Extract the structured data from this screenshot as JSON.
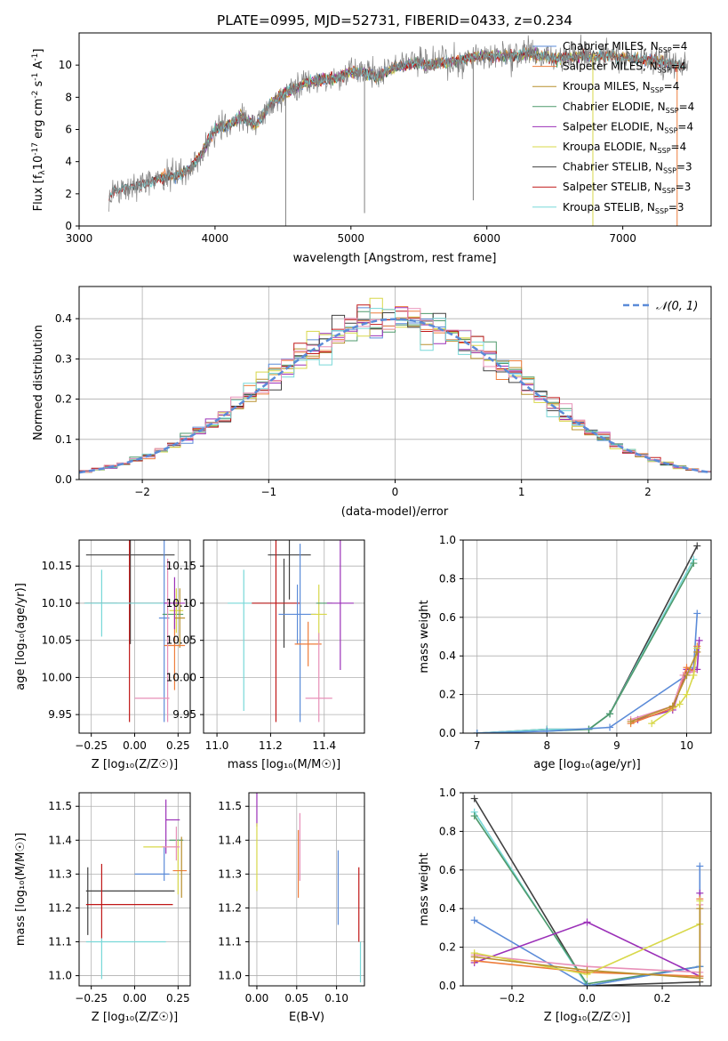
{
  "figure_title": "PLATE=0995, MJD=52731, FIBERID=0433, z=0.234",
  "colors": {
    "chabrier_miles": "#5b8bd8",
    "salpeter_miles": "#ee7d3c",
    "kroupa_miles": "#b8902e",
    "chabrier_elodie": "#4f9a6c",
    "salpeter_elodie": "#9b30b8",
    "kroupa_elodie": "#d8d84a",
    "chabrier_stelib": "#404040",
    "salpeter_stelib": "#c01818",
    "kroupa_stelib": "#78d8d8",
    "data": "#808080",
    "extra_pink": "#e890b8",
    "gaussian": "#5b8bd8"
  },
  "chart_data": [
    {
      "id": "spectrum",
      "type": "line",
      "xlabel": "wavelength [Angstrom, rest frame]",
      "ylabel_main": "Flux [f",
      "ylabel_sub1": "λ",
      "ylabel_mid": "10",
      "ylabel_sup1": "-17",
      "ylabel_rest": " erg cm",
      "ylabel_sup2": "-2",
      "ylabel_rest2": " s",
      "ylabel_sup3": "-1",
      "ylabel_rest3": " A",
      "ylabel_sup4": "-1",
      "ylabel_end": "]",
      "xlim": [
        3000,
        7650
      ],
      "ylim": [
        0,
        12
      ],
      "xticks": [
        3000,
        4000,
        5000,
        6000,
        7000
      ],
      "yticks": [
        0,
        2,
        4,
        6,
        8,
        10
      ],
      "legend_position": "upper-right",
      "legend": [
        {
          "name": "Chabrier MILES, N",
          "sub": "SSP",
          "tail": "=4",
          "color": "#5b8bd8"
        },
        {
          "name": "Salpeter MILES, N",
          "sub": "SSP",
          "tail": "=4",
          "color": "#ee7d3c"
        },
        {
          "name": "Kroupa MILES, N",
          "sub": "SSP",
          "tail": "=4",
          "color": "#b8902e"
        },
        {
          "name": "Chabrier ELODIE, N",
          "sub": "SSP",
          "tail": "=4",
          "color": "#4f9a6c"
        },
        {
          "name": "Salpeter ELODIE, N",
          "sub": "SSP",
          "tail": "=4",
          "color": "#9b30b8"
        },
        {
          "name": "Kroupa ELODIE, N",
          "sub": "SSP",
          "tail": "=4",
          "color": "#d8d84a"
        },
        {
          "name": "Chabrier STELIB, N",
          "sub": "SSP",
          "tail": "=3",
          "color": "#404040"
        },
        {
          "name": "Salpeter STELIB, N",
          "sub": "SSP",
          "tail": "=3",
          "color": "#c01818"
        },
        {
          "name": "Kroupa STELIB, N",
          "sub": "SSP",
          "tail": "=3",
          "color": "#78d8d8"
        }
      ],
      "envelope": [
        [
          3200,
          0.0
        ],
        [
          3220,
          1.8
        ],
        [
          3250,
          2.2
        ],
        [
          3300,
          2.3
        ],
        [
          3400,
          2.5
        ],
        [
          3500,
          2.6
        ],
        [
          3600,
          3.0
        ],
        [
          3700,
          3.1
        ],
        [
          3800,
          3.4
        ],
        [
          3900,
          4.5
        ],
        [
          4000,
          6.0
        ],
        [
          4100,
          6.3
        ],
        [
          4200,
          6.8
        ],
        [
          4300,
          6.2
        ],
        [
          4400,
          7.5
        ],
        [
          4500,
          8.2
        ],
        [
          4600,
          8.6
        ],
        [
          4700,
          9.0
        ],
        [
          4800,
          9.1
        ],
        [
          4900,
          9.2
        ],
        [
          5000,
          9.6
        ],
        [
          5100,
          9.5
        ],
        [
          5200,
          9.3
        ],
        [
          5300,
          9.8
        ],
        [
          5400,
          10.0
        ],
        [
          5500,
          10.1
        ],
        [
          5600,
          10.0
        ],
        [
          5700,
          10.2
        ],
        [
          5800,
          10.3
        ],
        [
          5900,
          10.5
        ],
        [
          6000,
          10.6
        ],
        [
          6100,
          10.5
        ],
        [
          6200,
          10.6
        ],
        [
          6300,
          10.7
        ],
        [
          6400,
          10.6
        ],
        [
          6500,
          10.4
        ],
        [
          6600,
          10.5
        ],
        [
          6700,
          10.6
        ],
        [
          6800,
          10.5
        ],
        [
          6900,
          10.6
        ],
        [
          7000,
          10.5
        ],
        [
          7100,
          10.4
        ],
        [
          7200,
          10.3
        ],
        [
          7300,
          10.2
        ],
        [
          7400,
          10.0
        ]
      ]
    },
    {
      "id": "residuals",
      "type": "histogram",
      "xlabel": "(data-model)/error",
      "ylabel": "Normed distribution",
      "xlim": [
        -2.5,
        2.5
      ],
      "ylim": [
        0,
        0.48
      ],
      "xticks": [
        -2,
        -1,
        0,
        1,
        2
      ],
      "yticks": [
        0.0,
        0.1,
        0.2,
        0.3,
        0.4
      ],
      "grid": true,
      "legend_position": "upper-right",
      "gaussian_legend": "𝒩(0, 1)",
      "bin_width": 0.1
    },
    {
      "id": "age-vs-Z",
      "type": "errorbar",
      "xlabel": "Z [log₁₀(Z/Z☉)]",
      "ylabel": "age  [log₁₀(age/yr)]",
      "xlim": [
        -0.32,
        0.32
      ],
      "ylim": [
        9.925,
        10.185
      ],
      "xticks": [
        -0.25,
        0.0,
        0.25
      ],
      "yticks": [
        9.95,
        10.0,
        10.05,
        10.1,
        10.15
      ],
      "grid": true,
      "points": [
        {
          "x": -0.025,
          "xerr": 0.255,
          "y": 10.165,
          "yerr": 0.12,
          "color": "#404040"
        },
        {
          "x": -0.19,
          "xerr": 0.09,
          "y": 10.1,
          "yerr": 0.045,
          "color": "#78d8d8"
        },
        {
          "x": -0.03,
          "xerr": 0.26,
          "y": 10.1,
          "yerr": 0.16,
          "color": "#c01818"
        },
        {
          "x": -0.03,
          "xerr": 0.26,
          "y": 10.1,
          "yerr": 0.0,
          "color": "#78d8d8"
        },
        {
          "x": 0.17,
          "xerr": 0.03,
          "y": 10.08,
          "yerr": 0.14,
          "color": "#5b8bd8"
        },
        {
          "x": 0.22,
          "xerr": 0.06,
          "y": 10.085,
          "yerr": 0.0,
          "color": "#4f9a6c"
        },
        {
          "x": 0.24,
          "xerr": 0.04,
          "y": 10.09,
          "yerr": 0.03,
          "color": "#d8d84a"
        },
        {
          "x": 0.26,
          "xerr": 0.03,
          "y": 10.08,
          "yerr": 0.04,
          "color": "#b8902e"
        },
        {
          "x": 0.23,
          "xerr": 0.06,
          "y": 10.043,
          "yerr": 0.06,
          "color": "#ee7d3c"
        },
        {
          "x": 0.23,
          "xerr": 0.06,
          "y": 10.1,
          "yerr": 0.035,
          "color": "#9b30b8"
        },
        {
          "x": 0.1,
          "xerr": 0.1,
          "y": 9.972,
          "yerr": 0.0,
          "color": "#e890b8"
        },
        {
          "x": 0.19,
          "xerr": 0.0,
          "y": 10.05,
          "yerr": 0.11,
          "color": "#e890b8"
        }
      ]
    },
    {
      "id": "age-vs-mass",
      "type": "errorbar",
      "xlabel": "mass [log₁₀(M/M☉)]",
      "xlim": [
        10.95,
        11.55
      ],
      "ylim": [
        9.925,
        10.185
      ],
      "xticks": [
        11.0,
        11.2,
        11.4
      ],
      "yticks": [
        9.95,
        10.0,
        10.05,
        10.1,
        10.15
      ],
      "grid": true,
      "points": [
        {
          "x": 11.27,
          "xerr": 0.08,
          "y": 10.165,
          "yerr": 0.06,
          "color": "#404040"
        },
        {
          "x": 11.25,
          "xerr": 0.0,
          "y": 10.1,
          "yerr": 0.06,
          "color": "#404040"
        },
        {
          "x": 11.1,
          "xerr": 0.0,
          "y": 10.05,
          "yerr": 0.095,
          "color": "#78d8d8"
        },
        {
          "x": 11.17,
          "xerr": 0.13,
          "y": 10.1,
          "yerr": 0.0,
          "color": "#78d8d8"
        },
        {
          "x": 11.22,
          "xerr": 0.09,
          "y": 10.1,
          "yerr": 0.16,
          "color": "#c01818"
        },
        {
          "x": 11.3,
          "xerr": 0.07,
          "y": 10.085,
          "yerr": 0.04,
          "color": "#5b8bd8"
        },
        {
          "x": 11.31,
          "xerr": 0.0,
          "y": 10.06,
          "yerr": 0.12,
          "color": "#5b8bd8"
        },
        {
          "x": 11.34,
          "xerr": 0.05,
          "y": 10.045,
          "yerr": 0.03,
          "color": "#ee7d3c"
        },
        {
          "x": 11.38,
          "xerr": 0.03,
          "y": 10.085,
          "yerr": 0.04,
          "color": "#d8d84a"
        },
        {
          "x": 11.4,
          "xerr": 0.03,
          "y": 10.1,
          "yerr": 0.0,
          "color": "#4f9a6c"
        },
        {
          "x": 11.46,
          "xerr": 0.05,
          "y": 10.1,
          "yerr": 0.09,
          "color": "#9b30b8"
        },
        {
          "x": 11.38,
          "xerr": 0.05,
          "y": 9.972,
          "yerr": 0.0,
          "color": "#e890b8"
        },
        {
          "x": 11.38,
          "xerr": 0.0,
          "y": 10.0,
          "yerr": 0.06,
          "color": "#e890b8"
        }
      ]
    },
    {
      "id": "mass-weight-vs-age",
      "type": "line",
      "xlabel": "age  [log₁₀(age/yr)]",
      "ylabel": "mass weight",
      "xlim": [
        6.8,
        10.35
      ],
      "ylim": [
        0,
        1.0
      ],
      "xticks": [
        7,
        8,
        9,
        10
      ],
      "yticks": [
        0.0,
        0.2,
        0.4,
        0.6,
        0.8,
        1.0
      ],
      "grid": true,
      "series": [
        {
          "color": "#404040",
          "x": [
            7.0,
            8.0,
            8.6,
            8.9,
            10.15
          ],
          "y": [
            0.0,
            0.02,
            0.02,
            0.1,
            0.97
          ]
        },
        {
          "color": "#78d8d8",
          "x": [
            7.0,
            8.0,
            8.6,
            8.9,
            10.1
          ],
          "y": [
            0.0,
            0.02,
            0.02,
            0.1,
            0.9
          ]
        },
        {
          "color": "#4f9a6c",
          "x": [
            8.0,
            8.6,
            8.9,
            10.1
          ],
          "y": [
            0.01,
            0.02,
            0.1,
            0.88
          ]
        },
        {
          "color": "#5b8bd8",
          "x": [
            7.0,
            8.0,
            8.9,
            10.0,
            10.1,
            10.15
          ],
          "y": [
            0.0,
            0.01,
            0.03,
            0.3,
            0.34,
            0.62
          ]
        },
        {
          "color": "#9b30b8",
          "x": [
            9.3,
            9.8,
            10.0,
            10.15,
            10.18
          ],
          "y": [
            0.07,
            0.12,
            0.33,
            0.33,
            0.48
          ]
        },
        {
          "color": "#ee7d3c",
          "x": [
            9.2,
            9.8,
            10.0,
            10.1,
            10.15
          ],
          "y": [
            0.05,
            0.13,
            0.34,
            0.32,
            0.45
          ]
        },
        {
          "color": "#e890b8",
          "x": [
            9.2,
            9.8,
            9.95,
            10.1,
            10.15
          ],
          "y": [
            0.07,
            0.14,
            0.3,
            0.32,
            0.42
          ]
        },
        {
          "color": "#d8d84a",
          "x": [
            9.5,
            9.9,
            10.0,
            10.1,
            10.15
          ],
          "y": [
            0.05,
            0.15,
            0.2,
            0.3,
            0.44
          ]
        },
        {
          "color": "#b8902e",
          "x": [
            9.2,
            9.8,
            10.0,
            10.15
          ],
          "y": [
            0.06,
            0.14,
            0.3,
            0.42
          ]
        }
      ]
    },
    {
      "id": "mass-vs-Z",
      "type": "errorbar",
      "xlabel": "Z [log₁₀(Z/Z☉)]",
      "ylabel": "mass [log₁₀(M/M☉)]",
      "xlim": [
        -0.32,
        0.32
      ],
      "ylim": [
        10.97,
        11.54
      ],
      "xticks": [
        -0.25,
        0.0,
        0.25
      ],
      "yticks": [
        11.0,
        11.1,
        11.2,
        11.3,
        11.4,
        11.5
      ],
      "grid": true,
      "points": [
        {
          "x": -0.025,
          "xerr": 0.255,
          "y": 11.25,
          "yerr": 0.0,
          "color": "#404040"
        },
        {
          "x": -0.27,
          "xerr": 0.0,
          "y": 11.22,
          "yerr": 0.1,
          "color": "#404040"
        },
        {
          "x": -0.03,
          "xerr": 0.25,
          "y": 11.21,
          "yerr": 0.0,
          "color": "#c01818"
        },
        {
          "x": -0.19,
          "xerr": 0.0,
          "y": 11.22,
          "yerr": 0.11,
          "color": "#c01818"
        },
        {
          "x": -0.05,
          "xerr": 0.23,
          "y": 11.1,
          "yerr": 0.0,
          "color": "#78d8d8"
        },
        {
          "x": -0.19,
          "xerr": 0.0,
          "y": 11.05,
          "yerr": 0.06,
          "color": "#78d8d8"
        },
        {
          "x": 0.1,
          "xerr": 0.1,
          "y": 11.3,
          "yerr": 0.0,
          "color": "#5b8bd8"
        },
        {
          "x": 0.17,
          "xerr": 0.0,
          "y": 11.33,
          "yerr": 0.05,
          "color": "#5b8bd8"
        },
        {
          "x": 0.22,
          "xerr": 0.04,
          "y": 11.46,
          "yerr": 0.0,
          "color": "#9b30b8"
        },
        {
          "x": 0.18,
          "xerr": 0.0,
          "y": 11.44,
          "yerr": 0.08,
          "color": "#9b30b8"
        },
        {
          "x": 0.24,
          "xerr": 0.04,
          "y": 11.4,
          "yerr": 0.0,
          "color": "#4f9a6c"
        },
        {
          "x": 0.15,
          "xerr": 0.1,
          "y": 11.38,
          "yerr": 0.0,
          "color": "#d8d84a"
        },
        {
          "x": 0.25,
          "xerr": 0.0,
          "y": 11.32,
          "yerr": 0.08,
          "color": "#d8d84a"
        },
        {
          "x": 0.26,
          "xerr": 0.04,
          "y": 11.31,
          "yerr": 0.0,
          "color": "#ee7d3c"
        },
        {
          "x": 0.27,
          "xerr": 0.0,
          "y": 11.32,
          "yerr": 0.09,
          "color": "#b8902e"
        },
        {
          "x": 0.21,
          "xerr": 0.05,
          "y": 11.38,
          "yerr": 0.0,
          "color": "#e890b8"
        },
        {
          "x": 0.24,
          "xerr": 0.0,
          "y": 11.39,
          "yerr": 0.05,
          "color": "#e890b8"
        }
      ]
    },
    {
      "id": "mass-vs-EBV",
      "type": "errorbar",
      "xlabel": "E(B-V)",
      "xlim": [
        -0.01,
        0.135
      ],
      "ylim": [
        10.97,
        11.54
      ],
      "xticks": [
        0.0,
        0.05,
        0.1
      ],
      "yticks": [
        11.0,
        11.1,
        11.2,
        11.3,
        11.4,
        11.5
      ],
      "grid": true,
      "points": [
        {
          "x": 0.0,
          "xerr": 0.0,
          "y": 11.49,
          "yerr": 0.05,
          "color": "#9b30b8"
        },
        {
          "x": 0.0,
          "xerr": 0.0,
          "y": 11.35,
          "yerr": 0.1,
          "color": "#d8d84a"
        },
        {
          "x": 0.052,
          "xerr": 0.0,
          "y": 11.33,
          "yerr": 0.1,
          "color": "#ee7d3c"
        },
        {
          "x": 0.054,
          "xerr": 0.0,
          "y": 11.38,
          "yerr": 0.1,
          "color": "#e890b8"
        },
        {
          "x": 0.102,
          "xerr": 0.0,
          "y": 11.26,
          "yerr": 0.11,
          "color": "#5b8bd8"
        },
        {
          "x": 0.128,
          "xerr": 0.0,
          "y": 11.21,
          "yerr": 0.11,
          "color": "#c01818"
        },
        {
          "x": 0.13,
          "xerr": 0.0,
          "y": 11.04,
          "yerr": 0.06,
          "color": "#78d8d8"
        }
      ]
    },
    {
      "id": "mass-weight-vs-Z",
      "type": "line",
      "xlabel": "Z [log₁₀(Z/Z☉)]",
      "ylabel": "mass weight",
      "xlim": [
        -0.33,
        0.33
      ],
      "ylim": [
        0,
        1.0
      ],
      "xticks": [
        -0.2,
        0.0,
        0.2
      ],
      "yticks": [
        0.0,
        0.2,
        0.4,
        0.6,
        0.8,
        1.0
      ],
      "grid": true,
      "series": [
        {
          "color": "#404040",
          "x": [
            -0.3,
            0.0,
            0.3
          ],
          "y": [
            0.97,
            0.0,
            0.02
          ]
        },
        {
          "color": "#78d8d8",
          "x": [
            -0.3,
            0.0,
            0.3
          ],
          "y": [
            0.9,
            0.0,
            0.1
          ]
        },
        {
          "color": "#4f9a6c",
          "x": [
            -0.3,
            0.0,
            0.3
          ],
          "y": [
            0.88,
            0.01,
            0.1
          ]
        },
        {
          "color": "#5b8bd8",
          "x": [
            -0.3,
            0.0,
            0.3,
            0.3
          ],
          "y": [
            0.34,
            0.0,
            0.1,
            0.62
          ]
        },
        {
          "color": "#9b30b8",
          "x": [
            -0.3,
            0.0,
            0.3,
            0.3
          ],
          "y": [
            0.12,
            0.33,
            0.05,
            0.48
          ]
        },
        {
          "color": "#ee7d3c",
          "x": [
            -0.3,
            0.0,
            0.3,
            0.3
          ],
          "y": [
            0.13,
            0.07,
            0.05,
            0.45
          ]
        },
        {
          "color": "#e890b8",
          "x": [
            -0.3,
            0.0,
            0.3,
            0.3
          ],
          "y": [
            0.16,
            0.1,
            0.07,
            0.42
          ]
        },
        {
          "color": "#d8d84a",
          "x": [
            -0.3,
            0.0,
            0.3,
            0.3
          ],
          "y": [
            0.17,
            0.06,
            0.32,
            0.44
          ]
        },
        {
          "color": "#b8902e",
          "x": [
            -0.3,
            0.0,
            0.3,
            0.3
          ],
          "y": [
            0.15,
            0.08,
            0.04,
            0.4
          ]
        }
      ]
    }
  ]
}
